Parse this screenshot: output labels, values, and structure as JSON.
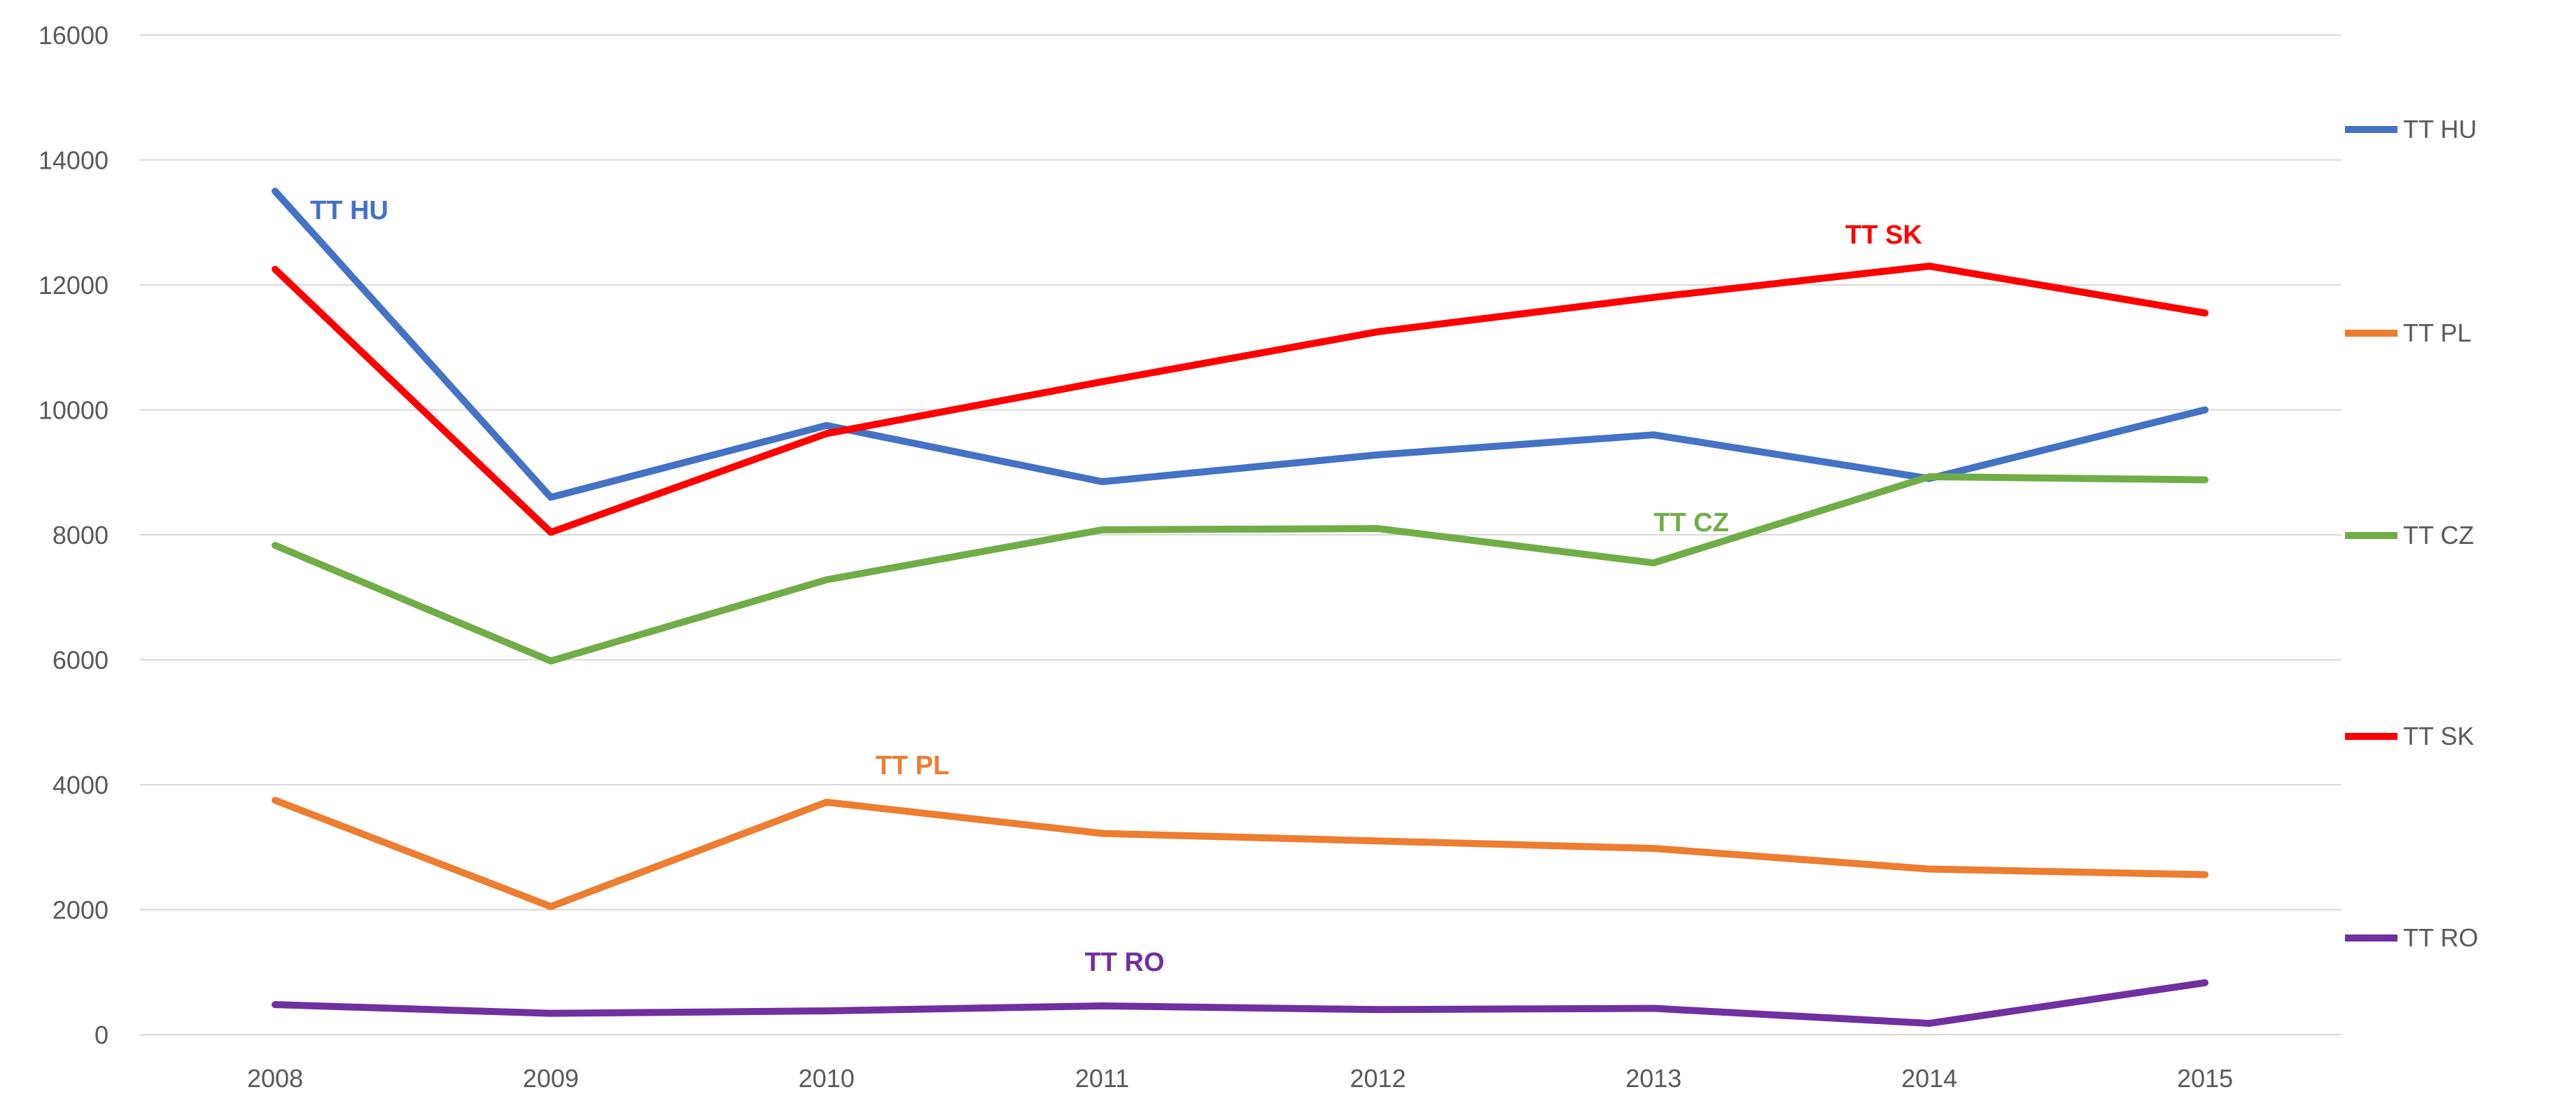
{
  "chart_data": {
    "type": "line",
    "title": "",
    "xlabel": "",
    "ylabel": "",
    "x": [
      "2008",
      "2009",
      "2010",
      "2011",
      "2012",
      "2013",
      "2014",
      "2015"
    ],
    "ylim": [
      0,
      16000
    ],
    "yticks": [
      0,
      2000,
      4000,
      6000,
      8000,
      10000,
      12000,
      14000,
      16000
    ],
    "grid": true,
    "legend_position": "right",
    "series": [
      {
        "name": "TT HU",
        "color": "#4472C4",
        "values": [
          13500,
          8600,
          9750,
          8850,
          9280,
          9600,
          8900,
          10000
        ],
        "label": "TT HU",
        "label_at": 0
      },
      {
        "name": "TT PL",
        "color": "#ED7D31",
        "values": [
          3750,
          2050,
          3720,
          3220,
          3100,
          2980,
          2650,
          2560
        ],
        "label": "TT PL",
        "label_at": 2
      },
      {
        "name": "TT CZ",
        "color": "#70AD47",
        "values": [
          7830,
          5980,
          7280,
          8080,
          8100,
          7550,
          8930,
          8880
        ],
        "label": "TT CZ",
        "label_at": 5
      },
      {
        "name": "TT SK",
        "color": "#FF0000",
        "values": [
          12250,
          8040,
          9620,
          10450,
          11250,
          11800,
          12300,
          11550
        ],
        "label": "TT SK",
        "label_at": 6
      },
      {
        "name": "TT RO",
        "color": "#7030A0",
        "values": [
          480,
          340,
          380,
          460,
          400,
          420,
          180,
          830
        ],
        "label": "TT RO",
        "label_at": 3
      }
    ]
  }
}
